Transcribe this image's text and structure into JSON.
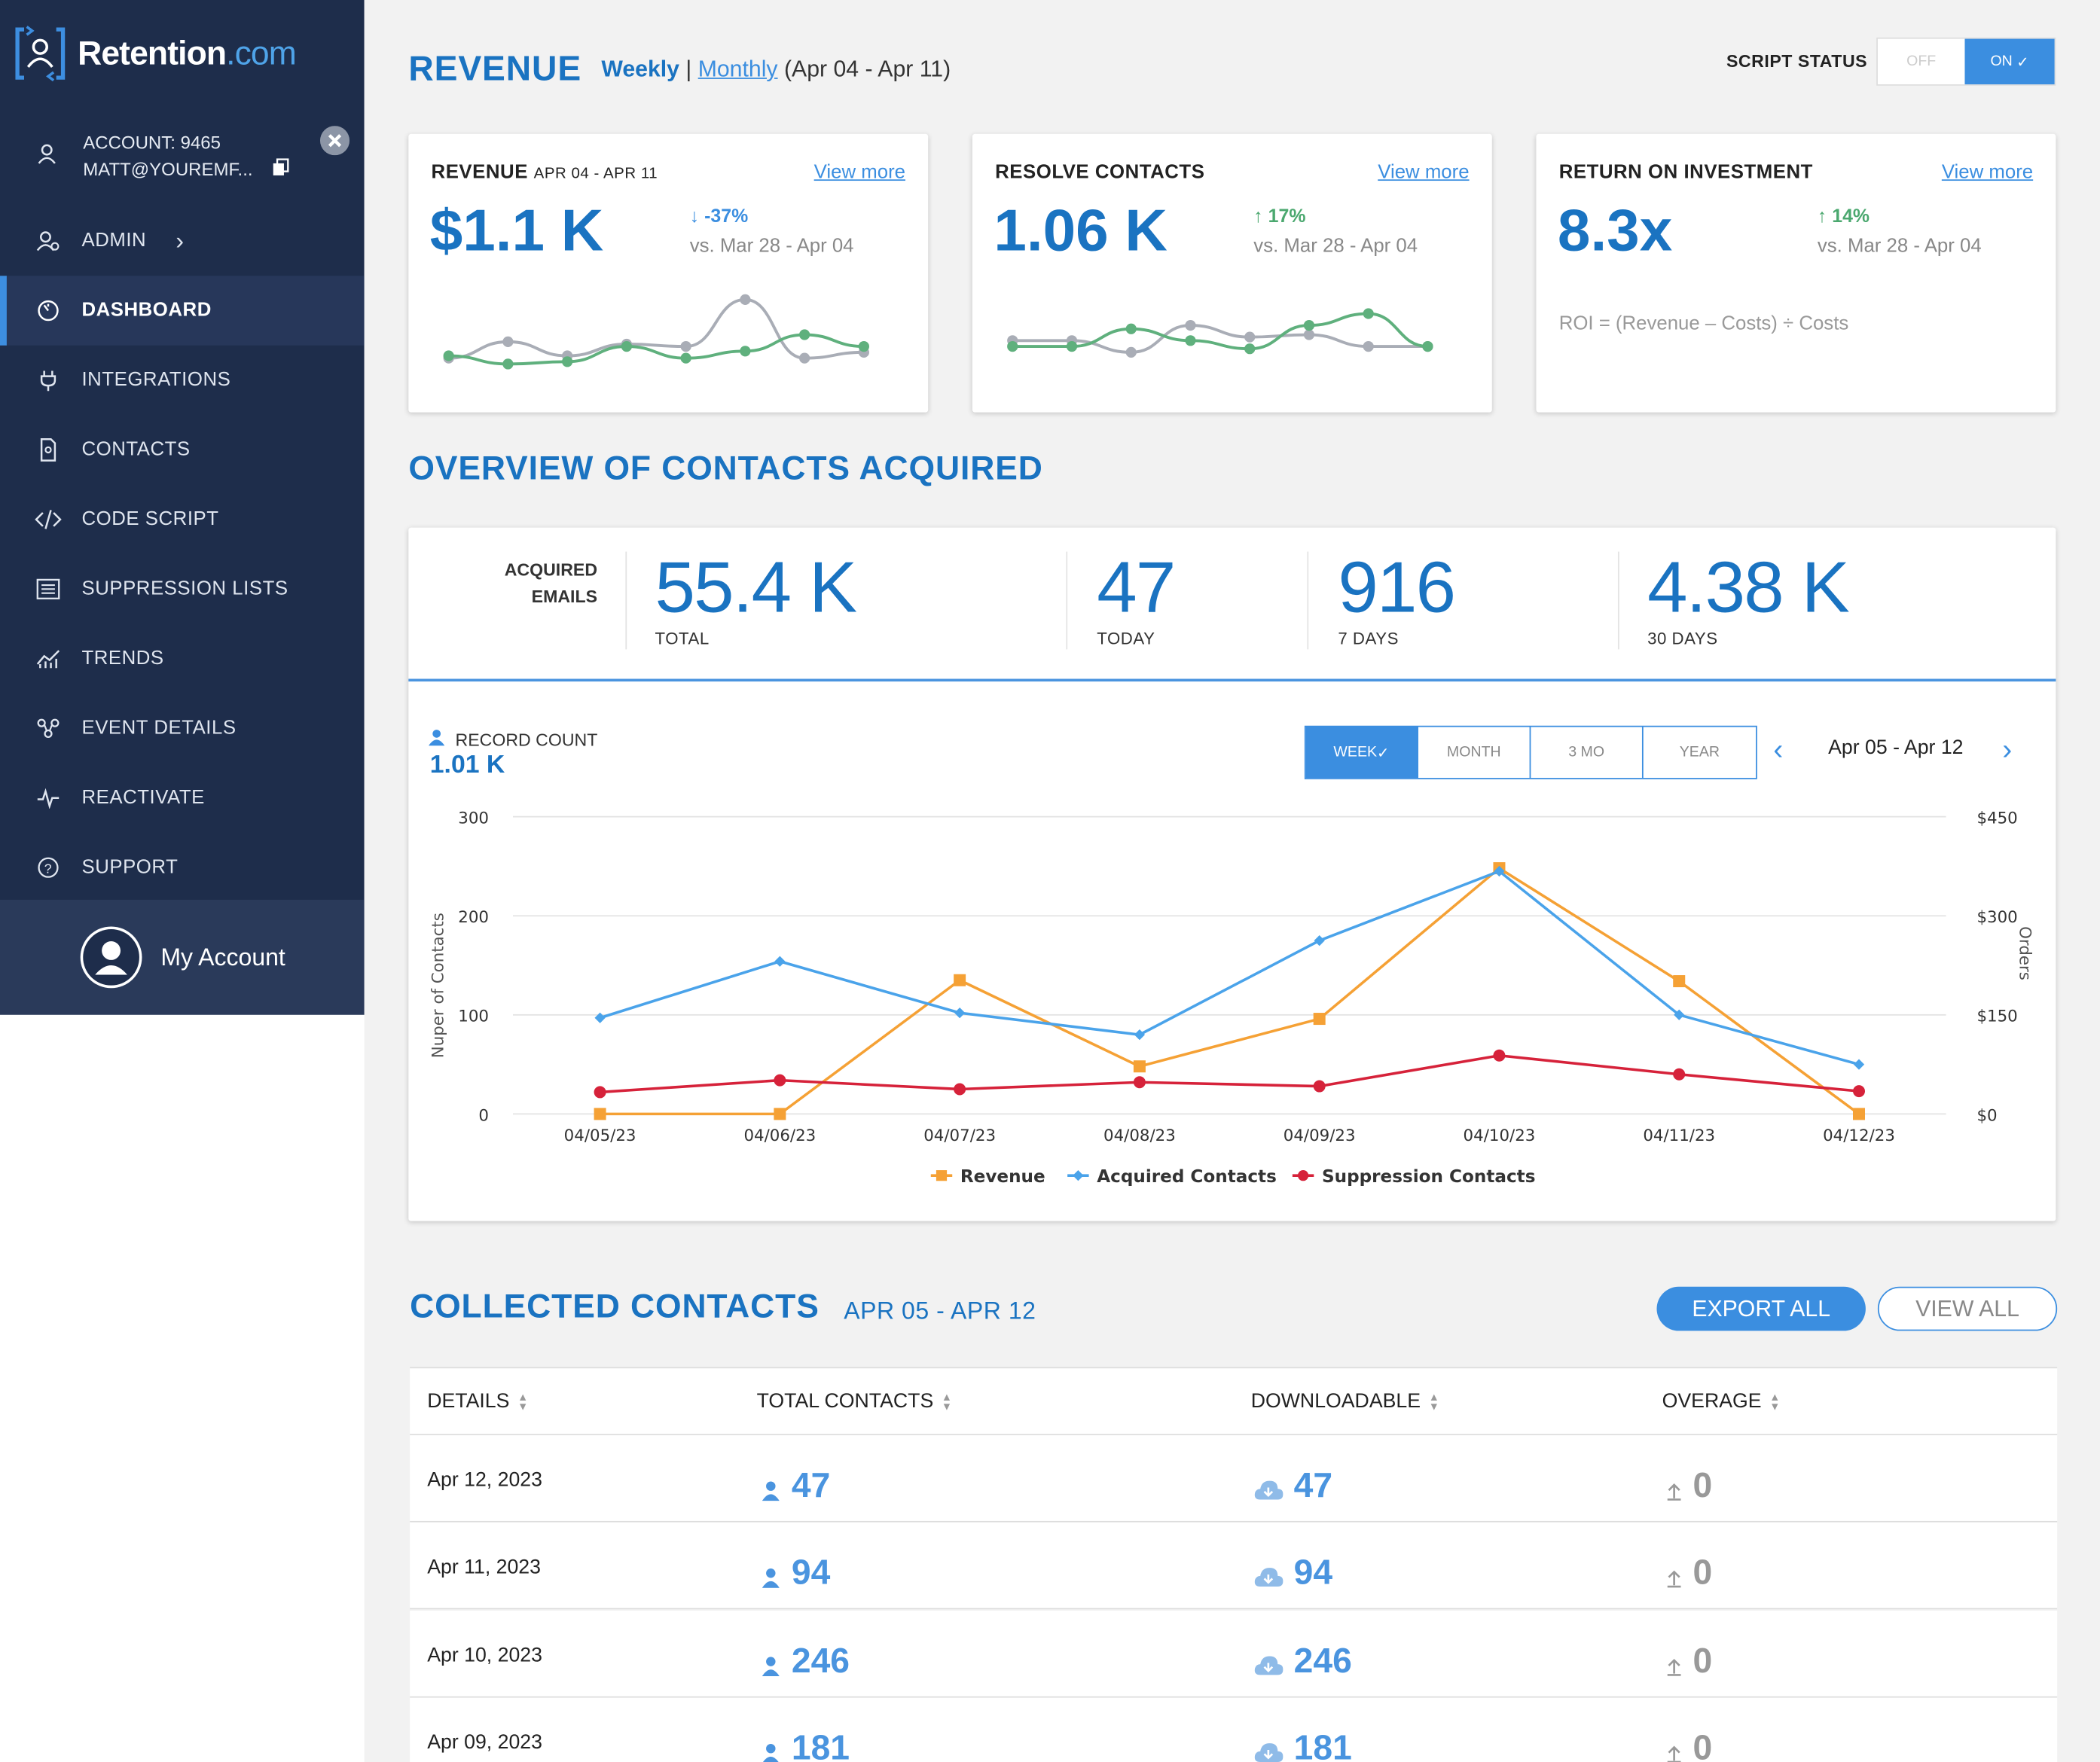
{
  "brand": {
    "name": "Retention",
    "suffix": ".com"
  },
  "account": {
    "id_label": "ACCOUNT: 9465",
    "email": "MATT@YOUREMF..."
  },
  "nav": [
    {
      "label": "ADMIN",
      "icon": "admin-icon"
    },
    {
      "label": "DASHBOARD",
      "icon": "dashboard-icon"
    },
    {
      "label": "INTEGRATIONS",
      "icon": "plug-icon"
    },
    {
      "label": "CONTACTS",
      "icon": "contacts-icon"
    },
    {
      "label": "CODE SCRIPT",
      "icon": "code-icon"
    },
    {
      "label": "SUPPRESSION LISTS",
      "icon": "list-icon"
    },
    {
      "label": "TRENDS",
      "icon": "trends-icon"
    },
    {
      "label": "EVENT DETAILS",
      "icon": "event-icon"
    },
    {
      "label": "REACTIVATE",
      "icon": "pulse-icon"
    },
    {
      "label": "SUPPORT",
      "icon": "help-icon"
    }
  ],
  "my_account": "My Account",
  "header": {
    "title": "REVENUE",
    "weekly": "Weekly",
    "sep": "|",
    "monthly": "Monthly",
    "range": "(Apr 04 - Apr 11)",
    "script_status_label": "SCRIPT STATUS",
    "off": "OFF",
    "on": "ON"
  },
  "cards": [
    {
      "title": "REVENUE",
      "subtitle": "APR 04 - APR 11",
      "link": "View more",
      "value": "$1.1 K",
      "delta": "-37%",
      "direction": "down",
      "vs": "vs. Mar 28 - Apr 04"
    },
    {
      "title": "RESOLVE CONTACTS",
      "subtitle": "",
      "link": "View more",
      "value": "1.06 K",
      "delta": "17%",
      "direction": "up",
      "vs": "vs. Mar 28 - Apr 04"
    },
    {
      "title": "RETURN ON INVESTMENT",
      "subtitle": "",
      "link": "View more",
      "value": "8.3x",
      "delta": "14%",
      "direction": "up",
      "vs": "vs. Mar 28 - Apr 04",
      "formula": "ROI = (Revenue – Costs) ÷ Costs"
    }
  ],
  "overview": {
    "title": "OVERVIEW OF CONTACTS ACQUIRED",
    "acquired_line1": "ACQUIRED",
    "acquired_line2": "EMAILS",
    "stats": [
      {
        "value": "55.4 K",
        "label": "TOTAL"
      },
      {
        "value": "47",
        "label": "TODAY"
      },
      {
        "value": "916",
        "label": "7 DAYS"
      },
      {
        "value": "4.38 K",
        "label": "30 DAYS"
      }
    ],
    "record_count_label": "RECORD COUNT",
    "record_count": "1.01 K",
    "ranges": [
      "WEEK",
      "MONTH",
      "3 MO",
      "YEAR"
    ],
    "date_range": "Apr 05 - Apr 12"
  },
  "chart_data": {
    "type": "line",
    "x": [
      "04/05/23",
      "04/06/23",
      "04/07/23",
      "04/08/23",
      "04/09/23",
      "04/10/23",
      "04/11/23",
      "04/12/23"
    ],
    "ylabel": "Nuper of Contacts",
    "y2label": "Orders",
    "ylim": [
      0,
      300
    ],
    "y2lim": [
      0,
      450
    ],
    "yticks": [
      "0",
      "100",
      "200",
      "300"
    ],
    "y2ticks": [
      "$0",
      "$150",
      "$300",
      "$450"
    ],
    "series": [
      {
        "name": "Revenue",
        "color": "#f5a135",
        "marker": "square",
        "values": [
          0,
          0,
          135,
          48,
          96,
          248,
          134,
          0
        ]
      },
      {
        "name": "Acquired Contacts",
        "color": "#4aa3ea",
        "marker": "diamond",
        "values": [
          97,
          154,
          102,
          80,
          175,
          245,
          100,
          50
        ]
      },
      {
        "name": "Suppression Contacts",
        "color": "#d6223a",
        "marker": "circle",
        "values": [
          22,
          34,
          25,
          32,
          28,
          59,
          40,
          23
        ]
      }
    ],
    "legend": "bottom",
    "grid": true
  },
  "revenue_spark": {
    "current": [
      22,
      15,
      17,
      30,
      20,
      26,
      40,
      30
    ],
    "previous": [
      20,
      34,
      22,
      32,
      30,
      70,
      20,
      25
    ]
  },
  "resolve_spark": {
    "current": [
      30,
      30,
      45,
      35,
      28,
      48,
      58,
      30
    ],
    "previous": [
      35,
      35,
      25,
      48,
      38,
      40,
      30,
      30
    ]
  },
  "collected": {
    "title": "COLLECTED CONTACTS",
    "range": "APR 05 - APR 12",
    "export": "EXPORT ALL",
    "view": "VIEW ALL",
    "columns": [
      "DETAILS",
      "TOTAL CONTACTS",
      "DOWNLOADABLE",
      "OVERAGE"
    ],
    "rows": [
      {
        "date": "Apr 12, 2023",
        "total": "47",
        "download": "47",
        "overage": "0"
      },
      {
        "date": "Apr 11, 2023",
        "total": "94",
        "download": "94",
        "overage": "0"
      },
      {
        "date": "Apr 10, 2023",
        "total": "246",
        "download": "246",
        "overage": "0"
      },
      {
        "date": "Apr 09, 2023",
        "total": "181",
        "download": "181",
        "overage": "0"
      }
    ]
  }
}
